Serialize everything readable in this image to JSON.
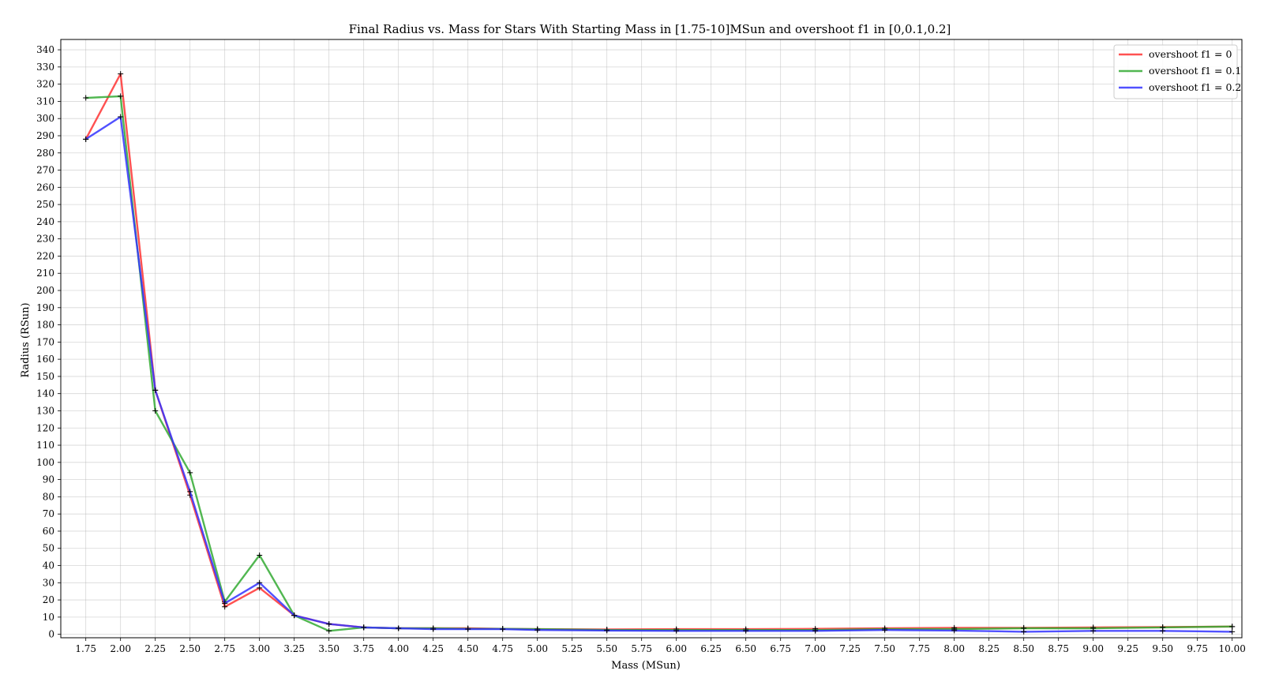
{
  "chart_data": {
    "type": "line",
    "title": "Final Radius vs. Mass for Stars With Starting Mass in [1.75-10]MSun and overshoot f1 in [0,0.1,0.2]",
    "xlabel": "Mass (MSun)",
    "ylabel": "Radius (RSun)",
    "xlim": [
      1.57,
      10.07
    ],
    "ylim": [
      -2,
      346
    ],
    "grid": true,
    "legend_position": "top-right",
    "x_ticks": [
      "1.75",
      "2.00",
      "2.25",
      "2.50",
      "2.75",
      "3.00",
      "3.25",
      "3.50",
      "3.75",
      "4.00",
      "4.25",
      "4.50",
      "4.75",
      "5.00",
      "5.25",
      "5.50",
      "5.75",
      "6.00",
      "6.25",
      "6.50",
      "6.75",
      "7.00",
      "7.25",
      "7.50",
      "7.75",
      "8.00",
      "8.25",
      "8.50",
      "8.75",
      "9.00",
      "9.25",
      "9.50",
      "9.75",
      "10.00"
    ],
    "y_ticks": [
      "0",
      "10",
      "20",
      "30",
      "40",
      "50",
      "60",
      "70",
      "80",
      "90",
      "100",
      "110",
      "120",
      "130",
      "140",
      "150",
      "160",
      "170",
      "180",
      "190",
      "200",
      "210",
      "220",
      "230",
      "240",
      "250",
      "260",
      "270",
      "280",
      "290",
      "300",
      "310",
      "320",
      "330",
      "340"
    ],
    "series": [
      {
        "name": "overshoot f1 = 0",
        "color": "#ff3333",
        "x": [
          1.75,
          2.0,
          2.25,
          2.5,
          2.75,
          3.0,
          3.25,
          3.5,
          3.75,
          4.0,
          4.25,
          4.5,
          4.75,
          5.0,
          5.5,
          6.0,
          6.5,
          7.0,
          7.5,
          8.0,
          8.5,
          9.0,
          9.5,
          10.0
        ],
        "y": [
          288,
          326,
          142,
          81,
          16,
          27,
          11,
          6,
          4,
          3.5,
          3.5,
          3.5,
          3.2,
          3,
          2.8,
          3,
          3,
          3.2,
          3.5,
          3.8,
          3.8,
          4,
          4.2,
          4.5
        ]
      },
      {
        "name": "overshoot f1 = 0.1",
        "color": "#33aa33",
        "x": [
          1.75,
          2.0,
          2.25,
          2.5,
          2.75,
          3.0,
          3.25,
          3.5,
          3.75,
          4.0,
          4.25,
          4.5,
          4.75,
          5.0,
          5.5,
          6.0,
          6.5,
          7.0,
          7.5,
          8.0,
          8.5,
          9.0,
          9.5,
          10.0
        ],
        "y": [
          312,
          313,
          130,
          94,
          19,
          46,
          11,
          2,
          4,
          3.5,
          3.5,
          3.2,
          3.2,
          3,
          2.5,
          2.5,
          2.5,
          2.5,
          3,
          3,
          3.5,
          3.5,
          4,
          4.5
        ]
      },
      {
        "name": "overshoot f1 = 0.2",
        "color": "#3333ff",
        "x": [
          1.75,
          2.0,
          2.25,
          2.5,
          2.75,
          3.0,
          3.25,
          3.5,
          3.75,
          4.0,
          4.25,
          4.5,
          4.75,
          5.0,
          5.5,
          6.0,
          6.5,
          7.0,
          7.5,
          8.0,
          8.5,
          9.0,
          9.5,
          10.0
        ],
        "y": [
          288,
          301,
          142,
          83,
          18,
          30,
          11,
          6,
          4,
          3.5,
          3,
          3,
          3,
          2.5,
          2.2,
          2,
          2,
          2,
          2.5,
          2.2,
          1.5,
          2,
          2,
          1.5
        ]
      }
    ]
  }
}
